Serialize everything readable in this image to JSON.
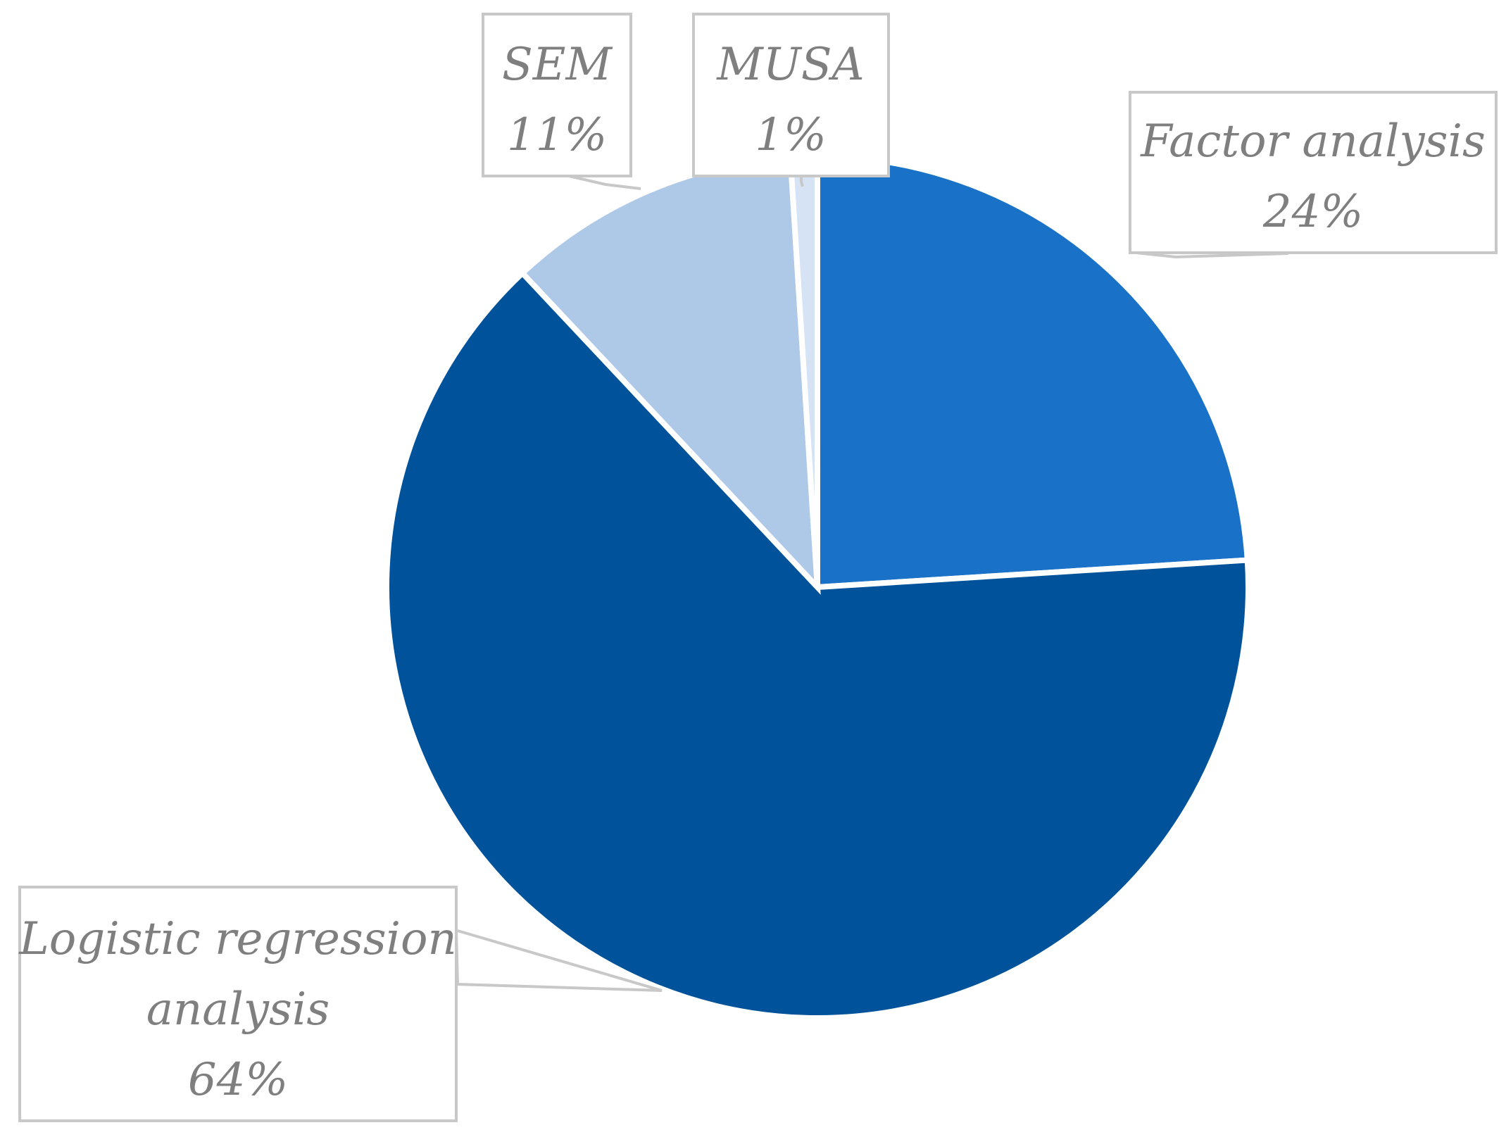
{
  "chart_data": {
    "type": "pie",
    "title": "",
    "start_angle_deg": 0,
    "direction": "clockwise",
    "slices": [
      {
        "name": "Factor analysis",
        "value": 24,
        "label": "24%",
        "color": "#1a72c8"
      },
      {
        "name": "Logistic regression analysis",
        "value": 64,
        "label": "64%",
        "color": "#00539b"
      },
      {
        "name": "SEM",
        "value": 11,
        "label": "11%",
        "color": "#aec8e8"
      },
      {
        "name": "MUSA",
        "value": 1,
        "label": "1%",
        "color": "#d5e3f4"
      }
    ],
    "label_lines": {
      "factor": [
        "Factor analysis",
        "24%"
      ],
      "logistic": [
        "Logistic regression",
        "analysis",
        "64%"
      ],
      "sem": [
        "SEM",
        "11%"
      ],
      "musa": [
        "MUSA",
        "1%"
      ]
    },
    "label_text_color": "#7f7f7f",
    "callout_border_color": "#c8c8c8"
  }
}
